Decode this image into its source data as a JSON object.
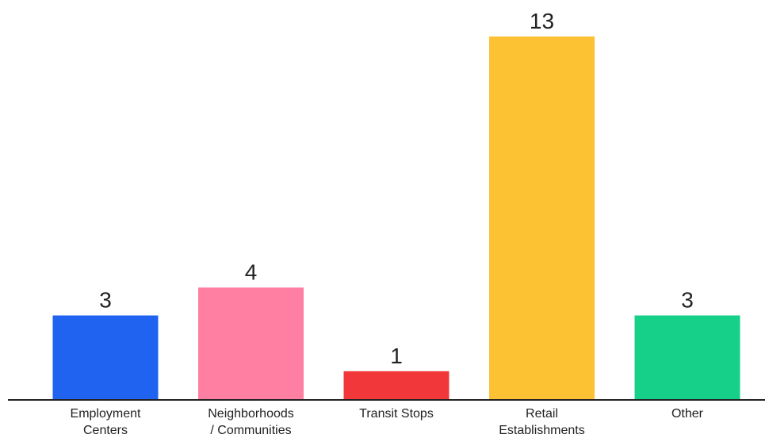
{
  "chart_data": {
    "type": "bar",
    "categories": [
      [
        "Employment",
        "Centers"
      ],
      [
        "Neighborhoods",
        "/ Communities"
      ],
      [
        "Transit Stops"
      ],
      [
        "Retail",
        "Establishments"
      ],
      [
        "Other"
      ]
    ],
    "values": [
      3,
      4,
      1,
      13,
      3
    ],
    "colors": [
      "#1f63f0",
      "#ff7fa2",
      "#f2373a",
      "#fdc134",
      "#16d08a"
    ],
    "ylim": [
      0,
      13
    ],
    "grid": false,
    "legend": "none",
    "axis_color": "#222222"
  }
}
